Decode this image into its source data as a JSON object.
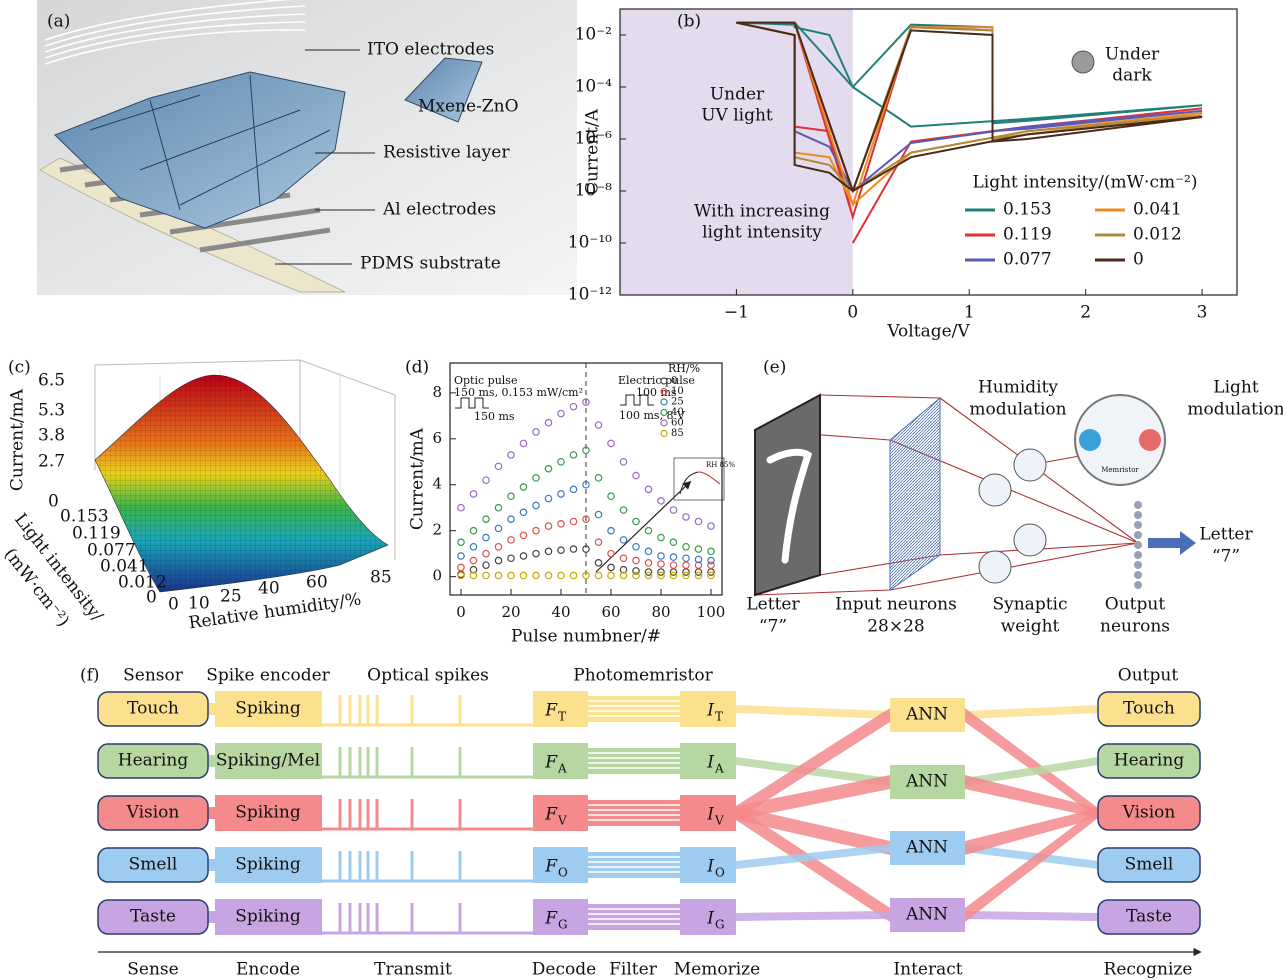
{
  "panel_a": {
    "label": "(a)",
    "ito": "ITO electrodes",
    "mxene": "Mxene-ZnO",
    "resistive": "Resistive layer",
    "al": "Al electrodes",
    "pdms": "PDMS substrate"
  },
  "chart_data": [
    {
      "type": "line",
      "panel_label": "(b)",
      "x_label": "Voltage/V",
      "y_label": "Current/A",
      "log_y": true,
      "xlim": [
        -2,
        3.3
      ],
      "ylim": [
        1e-12,
        0.1
      ],
      "xticks": [
        {
          "value": -1,
          "label": "−1"
        },
        0,
        1,
        2,
        3
      ],
      "yticks": [
        {
          "value": 1e-12,
          "label": "10⁻¹²"
        },
        {
          "value": 1e-10,
          "label": "10⁻¹⁰"
        },
        {
          "value": 1e-08,
          "label": "10⁻⁸"
        },
        {
          "value": 1e-06,
          "label": "10⁻⁶"
        },
        {
          "value": 0.0001,
          "label": "10⁻⁴"
        },
        {
          "value": 0.01,
          "label": "10⁻²"
        }
      ],
      "shaded_x": [
        -2,
        0
      ],
      "shade_color": "#e4dbee",
      "annotations": {
        "uv": [
          "Under",
          "UV light"
        ],
        "dark": [
          "Under",
          "dark"
        ],
        "trend": [
          "With increasing",
          "light intensity"
        ]
      },
      "legend_title": "Light intensity/(mW·cm⁻²)",
      "x": [
        0,
        0.5,
        1.5,
        3,
        1.5,
        1.2,
        1.2,
        0.5,
        0,
        -0.2,
        -0.5,
        -0.5,
        -1,
        -0.5,
        0
      ],
      "series": [
        {
          "name": "0.153",
          "color": "#1f7f7a",
          "values": [
            0.0001,
            3e-06,
            6e-06,
            2e-05,
            5e-06,
            4e-06,
            0.02,
            0.025,
            0.0001,
            0.01,
            0.02,
            0.025,
            0.03,
            0.03,
            0.0001
          ]
        },
        {
          "name": "0.119",
          "color": "#e03030",
          "values": [
            1e-10,
            8e-07,
            3e-06,
            1.5e-05,
            3e-06,
            2e-06,
            0.015,
            0.02,
            1e-09,
            2e-06,
            3e-06,
            0.01,
            0.03,
            0.03,
            1e-09
          ]
        },
        {
          "name": "0.077",
          "color": "#5a5ab8",
          "values": [
            1e-08,
            7e-07,
            3e-06,
            1.2e-05,
            2.5e-06,
            2e-06,
            0.02,
            0.02,
            1e-08,
            5e-07,
            2e-06,
            0.01,
            0.03,
            0.03,
            1e-08
          ]
        },
        {
          "name": "0.041",
          "color": "#f08c1e",
          "values": [
            3e-09,
            3e-07,
            2e-06,
            1e-05,
            1.5e-06,
            1e-06,
            0.02,
            0.02,
            3e-09,
            2e-07,
            3e-07,
            0.01,
            0.03,
            0.03,
            3e-09
          ]
        },
        {
          "name": "0.012",
          "color": "#b08a3a",
          "values": [
            1e-08,
            3e-07,
            2e-06,
            8e-06,
            1.5e-06,
            1e-06,
            0.015,
            0.02,
            1e-08,
            1e-07,
            2e-07,
            0.01,
            0.03,
            0.03,
            1e-08
          ]
        },
        {
          "name": "0",
          "color": "#4a2a1a",
          "values": [
            1e-08,
            2e-07,
            1.5e-06,
            7e-06,
            1e-06,
            8e-07,
            0.01,
            0.015,
            1e-08,
            5e-08,
            1e-07,
            0.01,
            0.03,
            0.03,
            1e-08
          ]
        }
      ]
    },
    {
      "type": "scatter",
      "panel_label": "(d)",
      "x_label": "Pulse numbner/#",
      "y_label": "Current/mA",
      "xlim": [
        -4.4,
        104.4
      ],
      "ylim": [
        -0.8,
        9.3
      ],
      "xticks": [
        0,
        20,
        40,
        60,
        80,
        100
      ],
      "yticks": [
        0,
        2,
        4,
        6,
        8
      ],
      "vlines": [
        50
      ],
      "annotations": {
        "optic_title": "Optic pulse",
        "optic_params": "150 ms, 0.153 mW/cm²",
        "optic_width": "150 ms",
        "electric_title": "Electric pulse",
        "electric_width": "100 ms",
        "electric_params": "100 ms, 8 V",
        "inset": "RH 85%"
      },
      "legend_title": "RH/%",
      "x": [
        0,
        5,
        10,
        15,
        20,
        25,
        30,
        35,
        40,
        45,
        50,
        55,
        60,
        65,
        70,
        75,
        80,
        85,
        90,
        95,
        100
      ],
      "series": [
        {
          "name": "0",
          "color": "#444444",
          "values": [
            0.1,
            0.3,
            0.5,
            0.7,
            0.8,
            0.9,
            1.0,
            1.1,
            1.15,
            1.2,
            1.2,
            0.6,
            0.4,
            0.3,
            0.25,
            0.2,
            0.2,
            0.2,
            0.2,
            0.2,
            0.2
          ]
        },
        {
          "name": "10",
          "color": "#d9534f",
          "values": [
            0.4,
            0.7,
            1.0,
            1.3,
            1.6,
            1.8,
            2.0,
            2.2,
            2.3,
            2.4,
            2.5,
            1.5,
            1.0,
            0.8,
            0.7,
            0.6,
            0.55,
            0.5,
            0.5,
            0.5,
            0.5
          ]
        },
        {
          "name": "25",
          "color": "#3a78c2",
          "values": [
            0.9,
            1.3,
            1.7,
            2.1,
            2.5,
            2.8,
            3.1,
            3.4,
            3.6,
            3.8,
            4.0,
            2.7,
            2.0,
            1.6,
            1.3,
            1.1,
            0.9,
            0.85,
            0.8,
            0.75,
            0.7
          ]
        },
        {
          "name": "40",
          "color": "#3a9a4a",
          "values": [
            1.5,
            2.0,
            2.5,
            3.0,
            3.5,
            3.9,
            4.3,
            4.7,
            5.0,
            5.3,
            5.5,
            4.3,
            3.5,
            2.9,
            2.4,
            2.0,
            1.7,
            1.5,
            1.3,
            1.2,
            1.1
          ]
        },
        {
          "name": "60",
          "color": "#9a6ac8",
          "values": [
            3.0,
            3.6,
            4.2,
            4.8,
            5.3,
            5.8,
            6.3,
            6.7,
            7.1,
            7.4,
            7.6,
            6.6,
            5.8,
            5.0,
            4.4,
            3.8,
            3.3,
            2.9,
            2.6,
            2.4,
            2.2
          ]
        },
        {
          "name": "85",
          "color": "#c8a800",
          "values": [
            0.05,
            0.05,
            0.05,
            0.05,
            0.05,
            0.05,
            0.05,
            0.05,
            0.05,
            0.05,
            0.05,
            0.05,
            0.05,
            0.05,
            0.05,
            0.05,
            0.05,
            0.05,
            0.05,
            0.05,
            0.05
          ]
        }
      ]
    }
  ],
  "panel_c": {
    "label": "(c)",
    "z_label": "Current/mA",
    "z_ticks": [
      "6.5",
      "5.3",
      "3.8",
      "2.7",
      "0"
    ],
    "light_label": [
      "Light intensity/",
      "(mW·cm⁻²)"
    ],
    "light_ticks": [
      "0.153",
      "0.119",
      "0.077",
      "0.041",
      "0.012",
      "0"
    ],
    "humidity_label": "Relative humidity/%",
    "humidity_ticks": [
      "0",
      "10",
      "25",
      "40",
      "60",
      "85"
    ]
  },
  "panel_e": {
    "label": "(e)",
    "input_letter": [
      "Letter",
      "“7”"
    ],
    "input_neurons": [
      "Input neurons",
      "28×28"
    ],
    "synapse": [
      "Synaptic",
      "weight"
    ],
    "output_neurons": [
      "Output",
      "neurons"
    ],
    "humidity": [
      "Humidity",
      "modulation"
    ],
    "light": [
      "Light",
      "modulation"
    ],
    "memristor": "Memristor",
    "output_letter": [
      "Letter",
      "“7”"
    ]
  },
  "panel_f": {
    "label": "(f)",
    "headers": {
      "sensor": "Sensor",
      "encoder": "Spike encoder",
      "spikes": "Optical spikes",
      "memristor": "Photomemristor",
      "output": "Output"
    },
    "rows": [
      {
        "sense": "Touch",
        "encoder": "Spiking",
        "filter": {
          "symbol": "F",
          "sub": "T"
        },
        "memory": {
          "symbol": "I",
          "sub": "T"
        },
        "output": "Touch"
      },
      {
        "sense": "Hearing",
        "encoder": "Spiking/Mel",
        "filter": {
          "symbol": "F",
          "sub": "A"
        },
        "memory": {
          "symbol": "I",
          "sub": "A"
        },
        "output": "Hearing"
      },
      {
        "sense": "Vision",
        "encoder": "Spiking",
        "filter": {
          "symbol": "F",
          "sub": "V"
        },
        "memory": {
          "symbol": "I",
          "sub": "V"
        },
        "output": "Vision"
      },
      {
        "sense": "Smell",
        "encoder": "Spiking",
        "filter": {
          "symbol": "F",
          "sub": "O"
        },
        "memory": {
          "symbol": "I",
          "sub": "O"
        },
        "output": "Smell"
      },
      {
        "sense": "Taste",
        "encoder": "Spiking",
        "filter": {
          "symbol": "F",
          "sub": "G"
        },
        "memory": {
          "symbol": "I",
          "sub": "G"
        },
        "output": "Taste"
      }
    ],
    "ann": [
      "ANN",
      "ANN",
      "ANN",
      "ANN"
    ],
    "stages": [
      "Sense",
      "Encode",
      "Transmit",
      "Decode",
      "Filter",
      "Memorize",
      "Interact",
      "Recognize"
    ]
  }
}
